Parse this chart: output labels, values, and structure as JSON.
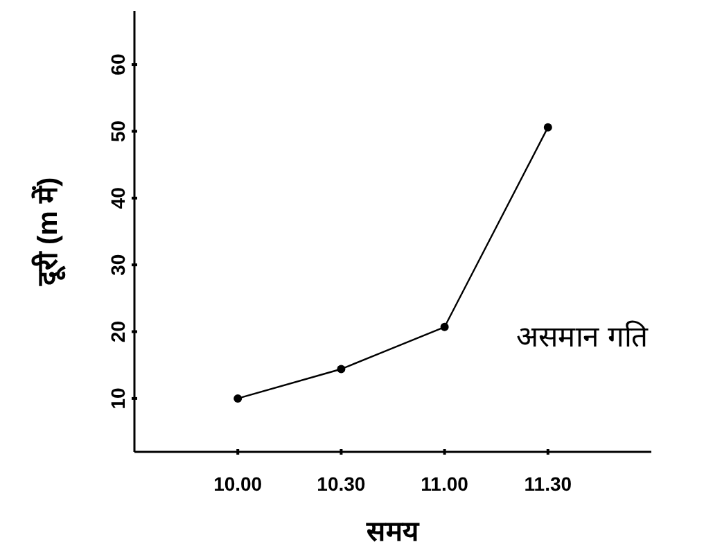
{
  "chart_data": {
    "type": "line",
    "xlabel": "समय",
    "ylabel": "दूरी (m में)",
    "categories": [
      "10.00",
      "10.30",
      "11.00",
      "11.30"
    ],
    "series": [
      {
        "color": "#000000",
        "values": [
          10,
          14.4,
          20.7,
          50.6
        ]
      }
    ],
    "ylim": [
      2,
      68
    ],
    "yticks": [
      10,
      20,
      30,
      40,
      50,
      60
    ],
    "marker": "circle",
    "line_style": "solid",
    "grid": false,
    "annotations": [
      "असमान गति"
    ]
  }
}
